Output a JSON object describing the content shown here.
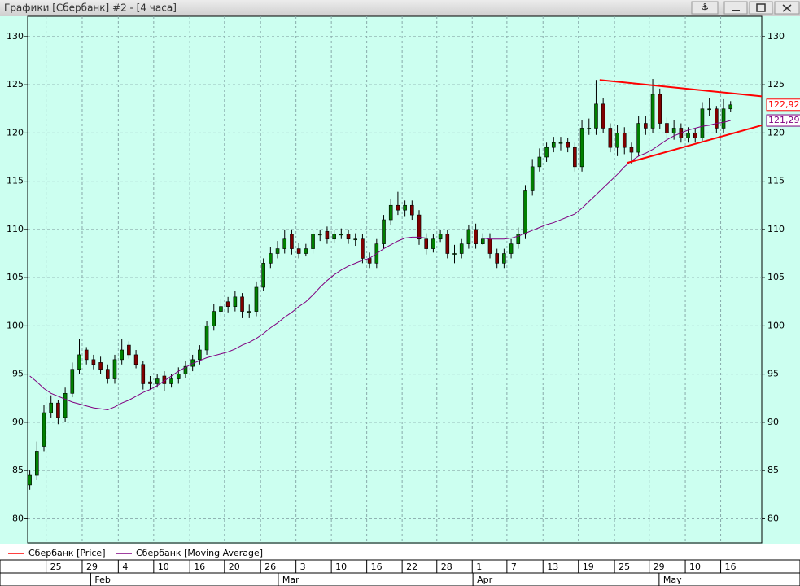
{
  "chart_data": {
    "type": "candlestick",
    "title": "Графики [Сбербанк] #2 - [4 часа]",
    "xlim": [
      -0.3,
      103.4
    ],
    "ylim": [
      77.5,
      132.1
    ],
    "yticks": [
      80,
      85,
      90,
      95,
      100,
      105,
      110,
      115,
      120,
      125,
      130
    ],
    "grid": true,
    "xticks": [
      {
        "value": 2.3,
        "label": "25"
      },
      {
        "value": 7.4,
        "label": "29"
      },
      {
        "value": 12.5,
        "label": "4"
      },
      {
        "value": 17.5,
        "label": "10"
      },
      {
        "value": 22.6,
        "label": "16"
      },
      {
        "value": 27.5,
        "label": "20"
      },
      {
        "value": 32.6,
        "label": "26"
      },
      {
        "value": 37.6,
        "label": "3"
      },
      {
        "value": 42.6,
        "label": "10"
      },
      {
        "value": 47.6,
        "label": "16"
      },
      {
        "value": 52.6,
        "label": "22"
      },
      {
        "value": 57.5,
        "label": "28"
      },
      {
        "value": 62.5,
        "label": "1"
      },
      {
        "value": 67.4,
        "label": "7"
      },
      {
        "value": 72.5,
        "label": "13"
      },
      {
        "value": 77.5,
        "label": "19"
      },
      {
        "value": 82.6,
        "label": "25"
      },
      {
        "value": 87.5,
        "label": "29"
      },
      {
        "value": 92.6,
        "label": "10"
      },
      {
        "value": 97.6,
        "label": "16"
      }
    ],
    "month_ticks": [
      {
        "value": 8.6,
        "label": "Feb"
      },
      {
        "value": 35.1,
        "label": "Mar"
      },
      {
        "value": 62.6,
        "label": "Apr"
      },
      {
        "value": 88.9,
        "label": "May"
      }
    ],
    "series": [
      {
        "name": "Сбербанк [Price]",
        "color": "#ff0000",
        "up_color": "#008000",
        "down_color": "#800000",
        "last_label": "122,92",
        "open": [
          83.5,
          84.5,
          87.5,
          91,
          92,
          90.5,
          93,
          95.5,
          97.5,
          96.5,
          96.2,
          95.5,
          94.5,
          96.5,
          98,
          97,
          96,
          94.2,
          94,
          94.8,
          94,
          94.5,
          95,
          95.8,
          96.5,
          97.5,
          100,
          101.5,
          102.5,
          102,
          103,
          101.5,
          101.5,
          104,
          106.5,
          107.5,
          108,
          109.5,
          108,
          107.5,
          108,
          109.5,
          109.8,
          109,
          109.5,
          109.5,
          109,
          109,
          107,
          106.5,
          108.5,
          111,
          112.5,
          112,
          112.5,
          111.5,
          109,
          108,
          109,
          109.5,
          107.5,
          107.5,
          108.5,
          110,
          108.5,
          109,
          107.5,
          106.5,
          107.5,
          108.5,
          109.5,
          114,
          116.5,
          117.5,
          118.5,
          119,
          119,
          118.5,
          116.5,
          120.5,
          120.5,
          123,
          120.5,
          118.5,
          120,
          118.5,
          118,
          121,
          120.5,
          124,
          121,
          120,
          120.5,
          119.5,
          120,
          119.5,
          122.5,
          122.5,
          120.5,
          122.5
        ],
        "high": [
          85,
          88,
          91.8,
          92.8,
          92.3,
          93.6,
          96.2,
          98.6,
          97.8,
          97,
          96.8,
          96,
          97,
          98.6,
          98.4,
          97.5,
          96.4,
          94.8,
          95,
          95.3,
          95,
          95.7,
          96.4,
          97,
          98,
          100.5,
          102.3,
          102.8,
          103,
          103.6,
          103.4,
          102.2,
          104.6,
          107,
          108.2,
          108.8,
          110,
          110,
          108.6,
          108.5,
          110,
          110,
          110.3,
          110,
          110.1,
          110,
          109.6,
          109.5,
          107.6,
          109,
          111.5,
          113.2,
          113.9,
          113,
          113,
          112,
          109.6,
          109.5,
          110,
          110,
          108.4,
          109,
          110.5,
          110.6,
          109.6,
          109.6,
          108,
          108,
          109,
          110.2,
          114.6,
          117.3,
          118.4,
          119,
          119.6,
          119.6,
          119.5,
          119,
          121.3,
          121.5,
          125.5,
          123.6,
          121,
          120.8,
          120.6,
          119,
          121.8,
          121.8,
          125.6,
          124.6,
          121.6,
          121.3,
          121,
          120.6,
          120.4,
          123.2,
          123.6,
          122.8,
          123.5,
          123.3
        ],
        "low": [
          83,
          84,
          87,
          90.5,
          89.8,
          90,
          92.6,
          95,
          96,
          95.5,
          95,
          94,
          94,
          96,
          96.6,
          95.6,
          93.4,
          93.4,
          93.6,
          93.2,
          93.6,
          94,
          94.6,
          95.3,
          96,
          97,
          99.5,
          101,
          101.4,
          101.5,
          100.8,
          100.8,
          101,
          103.6,
          106,
          107,
          107.5,
          107.4,
          107,
          107.2,
          107.5,
          108.8,
          108.5,
          108.6,
          109,
          108.5,
          108.3,
          106.5,
          106,
          106,
          108,
          110.5,
          111.5,
          111.3,
          111,
          108.4,
          107.4,
          107.6,
          108.7,
          107,
          106.5,
          107,
          108,
          108,
          108.4,
          107,
          106,
          106,
          107,
          108,
          109,
          113.5,
          116,
          117,
          118,
          118.2,
          118,
          116,
          116,
          119.8,
          119.8,
          120,
          118,
          117.6,
          117.8,
          116.8,
          117.6,
          119.8,
          120,
          120.4,
          119.4,
          119.3,
          119,
          119,
          119,
          119.2,
          121.8,
          120,
          120,
          122.2
        ],
        "close": [
          84.5,
          87,
          91,
          92,
          90.5,
          93,
          95.5,
          97,
          96.5,
          96,
          95.5,
          94.5,
          96.5,
          97.5,
          97,
          96,
          94,
          94,
          94.5,
          94,
          94.5,
          95,
          95.8,
          96.5,
          97.5,
          100,
          101.5,
          102,
          102,
          103,
          101.5,
          101.5,
          104,
          106.5,
          107.5,
          108,
          109,
          108,
          107.5,
          108,
          109.5,
          109.5,
          109,
          109.5,
          109.5,
          109,
          109,
          107,
          106.5,
          108.5,
          111,
          112.5,
          112,
          112.5,
          111.5,
          109,
          108,
          109,
          109.5,
          107.5,
          107.5,
          108.5,
          110,
          108.5,
          109,
          107.5,
          106.5,
          107.5,
          108.5,
          109.5,
          114,
          116.5,
          117.5,
          118.5,
          119,
          119,
          118.5,
          116.5,
          120.5,
          120.5,
          123,
          120.5,
          118.5,
          120,
          118.5,
          118,
          121,
          120.5,
          124,
          121,
          120,
          120.5,
          119.5,
          120,
          119.5,
          122.5,
          122.5,
          120.5,
          122.5,
          122.92
        ]
      },
      {
        "name": "Сбербанк [Moving Average]",
        "color": "#800080",
        "last_label": "121,295",
        "values": [
          94.8,
          94.2,
          93.5,
          93.0,
          92.7,
          92.4,
          92.1,
          91.9,
          91.7,
          91.5,
          91.4,
          91.3,
          91.6,
          92.0,
          92.3,
          92.7,
          93.1,
          93.4,
          93.8,
          94.3,
          94.8,
          95.3,
          95.7,
          96.1,
          96.4,
          96.7,
          96.9,
          97.1,
          97.3,
          97.6,
          98.0,
          98.3,
          98.7,
          99.2,
          99.8,
          100.3,
          100.9,
          101.4,
          102.0,
          102.5,
          103.2,
          104.0,
          104.7,
          105.3,
          105.8,
          106.2,
          106.5,
          106.8,
          107.0,
          107.5,
          108.0,
          108.4,
          108.8,
          109.1,
          109.2,
          109.2,
          109.1,
          109.1,
          109.1,
          109.1,
          109.1,
          109.1,
          109.1,
          109.1,
          109.1,
          109.0,
          109.0,
          109.0,
          109.1,
          109.3,
          109.6,
          109.9,
          110.2,
          110.5,
          110.7,
          111.0,
          111.3,
          111.6,
          112.2,
          112.9,
          113.6,
          114.3,
          115.0,
          115.7,
          116.5,
          117.1,
          117.6,
          117.9,
          118.3,
          118.8,
          119.3,
          119.7,
          120.0,
          120.3,
          120.5,
          120.7,
          120.8,
          121.0,
          121.1,
          121.295
        ]
      }
    ],
    "trendlines": [
      {
        "color": "#ff0000",
        "x": [
          80.5,
          103.4
        ],
        "y": [
          125.5,
          123.8
        ]
      },
      {
        "color": "#ff0000",
        "x": [
          84.4,
          103.4
        ],
        "y": [
          116.9,
          120.8
        ]
      }
    ]
  }
}
